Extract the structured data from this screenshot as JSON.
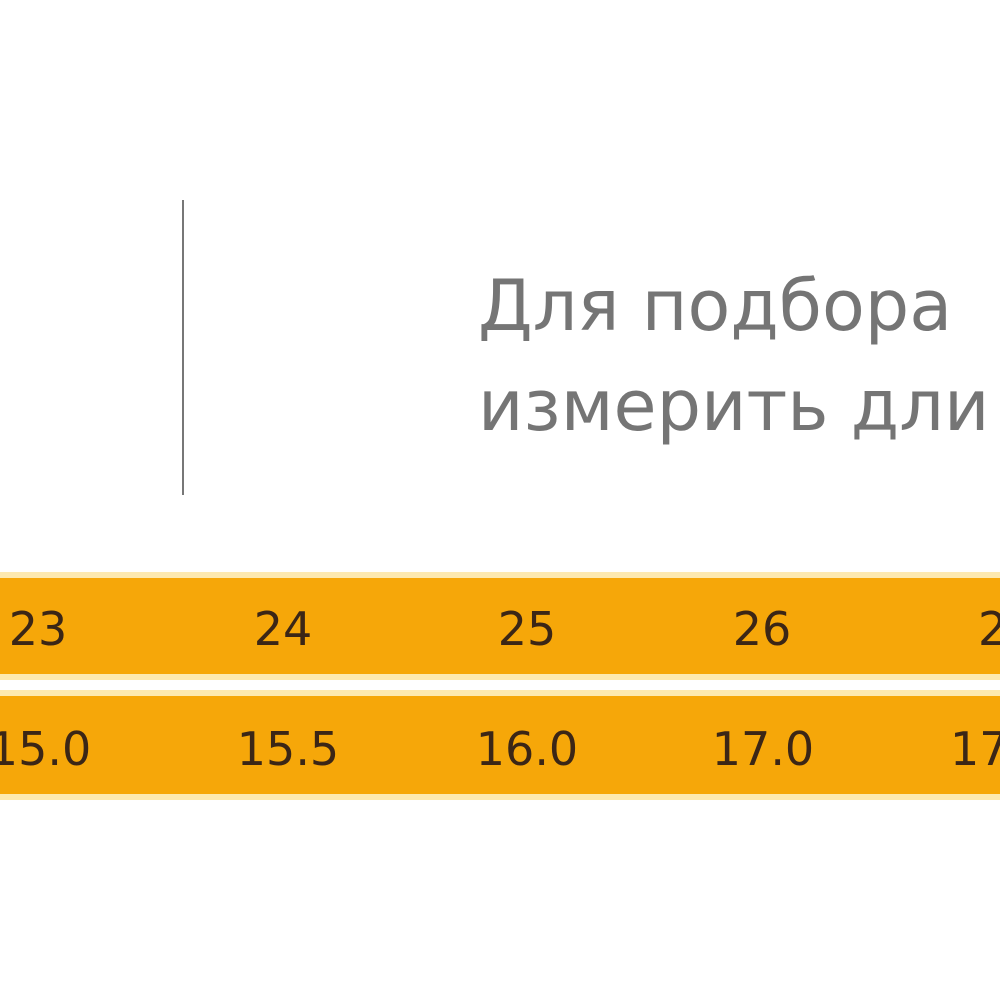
{
  "intro": {
    "lines": [
      "Для подбора",
      "измерить дли"
    ]
  },
  "table": {
    "rows": [
      [
        "23",
        "24",
        "25",
        "26",
        "2"
      ],
      [
        "15.0",
        "15.5",
        "16.0",
        "17.0",
        "17"
      ]
    ]
  }
}
